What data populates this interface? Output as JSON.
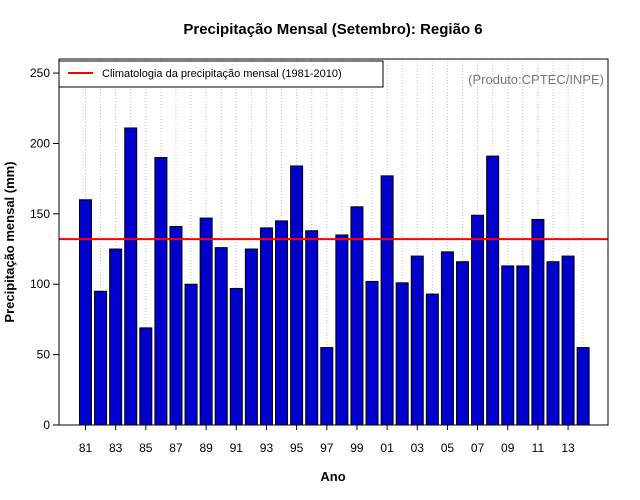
{
  "chart_data": {
    "type": "bar",
    "title": "Precipitação Mensal (Setembro): Região 6",
    "xlabel": "Ano",
    "ylabel": "Precipitação mensal (mm)",
    "ylim": [
      0,
      260
    ],
    "yticks": [
      0,
      50,
      100,
      150,
      200,
      250
    ],
    "xtick_labels": [
      "81",
      "83",
      "85",
      "87",
      "89",
      "91",
      "93",
      "95",
      "97",
      "99",
      "01",
      "03",
      "05",
      "07",
      "09",
      "11",
      "13"
    ],
    "categories": [
      "1981",
      "1982",
      "1983",
      "1984",
      "1985",
      "1986",
      "1987",
      "1988",
      "1989",
      "1990",
      "1991",
      "1992",
      "1993",
      "1994",
      "1995",
      "1996",
      "1997",
      "1998",
      "1999",
      "2000",
      "2001",
      "2002",
      "2003",
      "2004",
      "2005",
      "2006",
      "2007",
      "2008",
      "2009",
      "2010",
      "2011",
      "2012",
      "2013",
      "2014"
    ],
    "values": [
      160,
      95,
      125,
      211,
      69,
      190,
      141,
      100,
      147,
      126,
      97,
      125,
      140,
      145,
      184,
      138,
      55,
      135,
      155,
      102,
      177,
      101,
      120,
      93,
      123,
      116,
      149,
      191,
      113,
      113,
      146,
      116,
      120,
      55
    ],
    "climatology": 132,
    "legend": {
      "label": "Climatologia da precipitação mensal (1981-2010)",
      "position": "top-left"
    },
    "credit": "(Produto:CPTEC/INPE)",
    "grid": "vertical-dotted",
    "colors": {
      "bar": "#0000CC",
      "bar_edge": "#000000",
      "line": "#FF0000",
      "grid": "#BEBEBE"
    }
  }
}
